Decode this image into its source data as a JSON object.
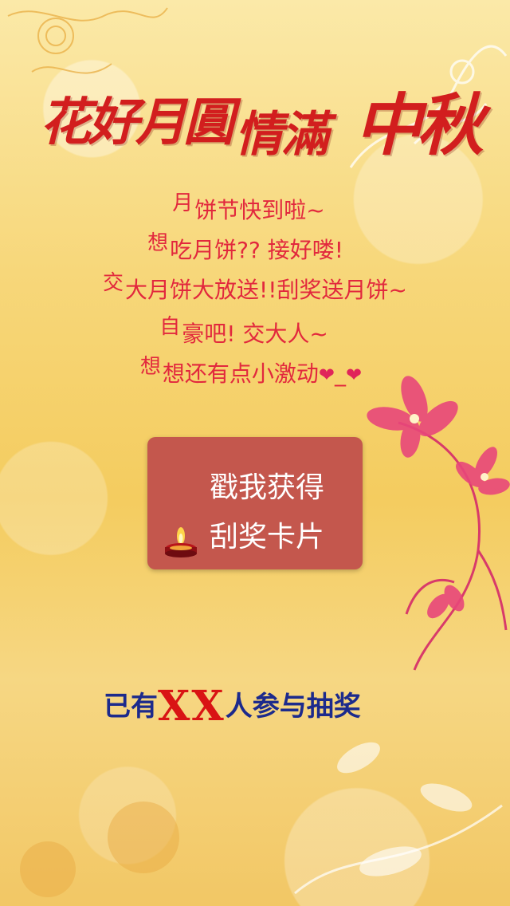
{
  "banner": {
    "title_part1": "花好月圓",
    "title_part2": "情滿",
    "title_part3": "中秋"
  },
  "message": {
    "line1_first": "月",
    "line1_rest": "饼节快到啦~",
    "line2_first": "想",
    "line2_rest": "吃月饼?? 接好喽!",
    "line3_first": "交",
    "line3_rest": "大月饼大放送!!刮奖送月饼~",
    "line4_first": "自",
    "line4_rest": "豪吧!   交大人~",
    "line5_first": "想",
    "line5_rest": "想还有点小激动",
    "line5_tail": "_"
  },
  "cta": {
    "line1": "戳我获得",
    "line2": "刮奖卡片"
  },
  "participants": {
    "prefix": "已有",
    "count": "XX",
    "suffix": "人参与抽奖"
  },
  "colors": {
    "title_red": "#d21e1e",
    "message_red": "#e2283d",
    "button_bg": "#c4574d",
    "participants_blue": "#1c2a8c",
    "participants_red": "#d91414"
  }
}
